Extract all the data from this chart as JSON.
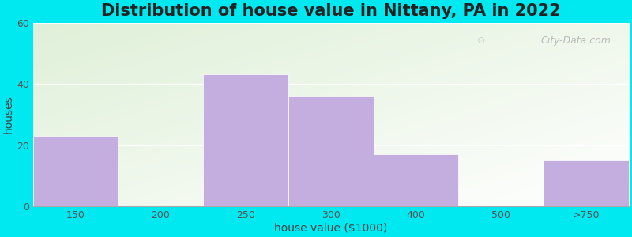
{
  "title": "Distribution of house value in Nittany, PA in 2022",
  "xlabel": "house value ($1000)",
  "ylabel": "houses",
  "categories": [
    "150",
    "200",
    "250",
    "300",
    "400",
    "500",
    ">750"
  ],
  "values": [
    23,
    0,
    43,
    36,
    17,
    0,
    15
  ],
  "bar_color": "#c4aee0",
  "ylim": [
    0,
    60
  ],
  "yticks": [
    0,
    20,
    40,
    60
  ],
  "background_outer": "#00e8f0",
  "plot_bg_top_left": "#dff0d8",
  "plot_bg_bottom_right": "#ffffff",
  "title_fontsize": 15,
  "label_fontsize": 10,
  "tick_fontsize": 9,
  "watermark": "City-Data.com",
  "bar_edges": [
    0,
    1,
    2,
    3,
    4,
    5,
    6,
    7
  ],
  "bar_lefts": [
    0,
    1,
    2,
    3,
    4,
    5,
    6
  ],
  "bar_widths": [
    1,
    1,
    1,
    1,
    1,
    1,
    1
  ]
}
